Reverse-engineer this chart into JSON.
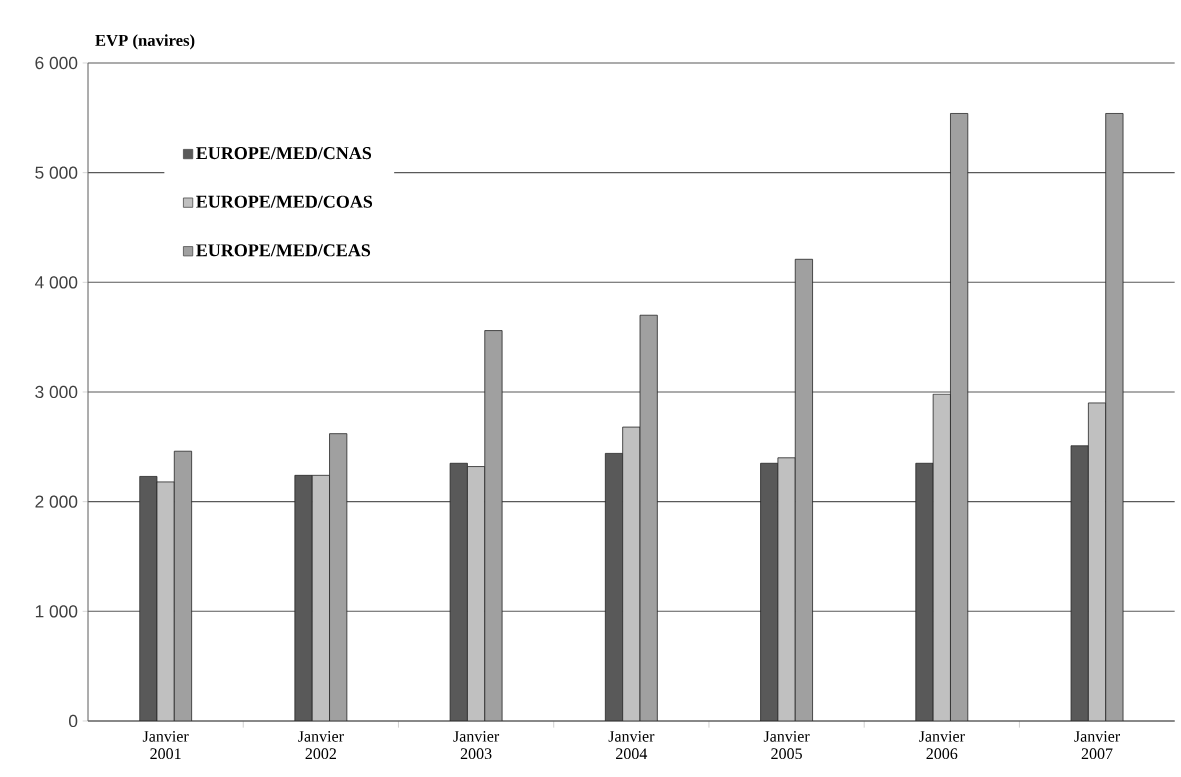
{
  "chart_data": {
    "type": "bar",
    "ylabel": "EVP (navires)",
    "categories": [
      "Janvier 2001",
      "Janvier 2002",
      "Janvier 2003",
      "Janvier 2004",
      "Janvier 2005",
      "Janvier 2006",
      "Janvier 2007"
    ],
    "series": [
      {
        "name": "EUROPE/MED/CNAS",
        "color": "#595959",
        "values": [
          2230,
          2240,
          2350,
          2440,
          2350,
          2350,
          2510
        ]
      },
      {
        "name": "EUROPE/MED/COAS",
        "color": "#c0c0c0",
        "values": [
          2180,
          2240,
          2320,
          2680,
          2400,
          2980,
          2900
        ]
      },
      {
        "name": "EUROPE/MED/CEAS",
        "color": "#a0a0a0",
        "values": [
          2460,
          2620,
          3560,
          3700,
          4210,
          5540,
          5540
        ]
      }
    ],
    "ylim": [
      0,
      6000
    ],
    "yticks": [
      {
        "value": 0,
        "label": "0"
      },
      {
        "value": 1000,
        "label": "1 000"
      },
      {
        "value": 2000,
        "label": "2 000"
      },
      {
        "value": 3000,
        "label": "3 000"
      },
      {
        "value": 4000,
        "label": "4 000"
      },
      {
        "value": 5000,
        "label": "5 000"
      },
      {
        "value": 6000,
        "label": "6 000"
      }
    ],
    "grid": "y",
    "legend": "top left"
  }
}
